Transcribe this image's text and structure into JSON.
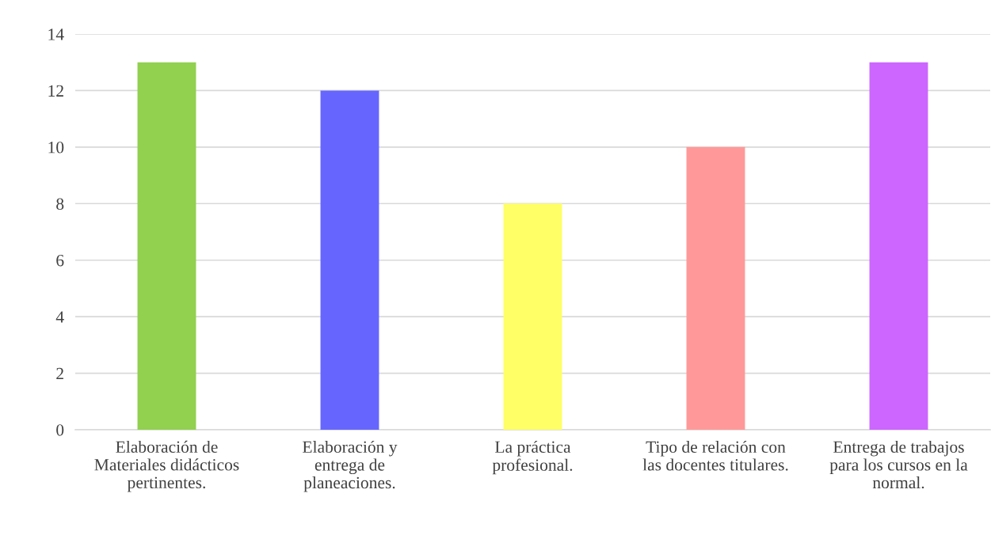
{
  "chart_data": {
    "type": "bar",
    "categories": [
      "Elaboración de\nMateriales didácticos\npertinentes.",
      "Elaboración y\nentrega de\nplaneaciones.",
      "La práctica\nprofesional.",
      "Tipo de relación con\nlas docentes titulares.",
      "Entrega de trabajos\npara los cursos en la\nnormal."
    ],
    "values": [
      13,
      12,
      8,
      10,
      13
    ],
    "colors": [
      "#92d050",
      "#6666ff",
      "#ffff66",
      "#ff9999",
      "#cc66ff"
    ],
    "ylim": [
      0,
      14
    ],
    "yticks": [
      0,
      2,
      4,
      6,
      8,
      10,
      12,
      14
    ],
    "grid": "y",
    "legend": false
  }
}
